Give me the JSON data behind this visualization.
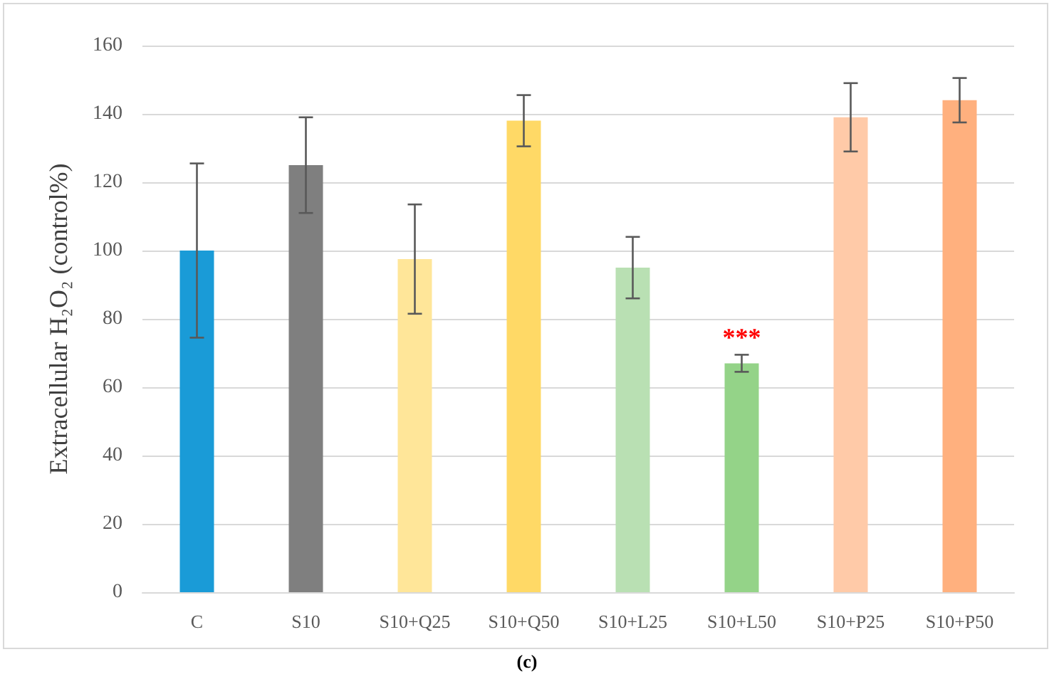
{
  "chart_data": {
    "type": "bar",
    "ylabel": "Extracellular H₂O₂ (control%)",
    "categories": [
      "C",
      "S10",
      "S10+Q25",
      "S10+Q50",
      "S10+L25",
      "S10+L50",
      "S10+P25",
      "S10+P50"
    ],
    "values": [
      100,
      125,
      97.5,
      138,
      95,
      67,
      139,
      144
    ],
    "errors": [
      25.5,
      14,
      16,
      7.5,
      9,
      2.5,
      10,
      6.5
    ],
    "colors": [
      "#1a9bd7",
      "#7f7f7f",
      "#ffe699",
      "#ffd966",
      "#b9e0b3",
      "#94d388",
      "#ffcaa8",
      "#ffb07e"
    ],
    "ylim": [
      0,
      160
    ],
    "yticks": [
      0,
      20,
      40,
      60,
      80,
      100,
      120,
      140,
      160
    ],
    "grid": "y",
    "annotations": [
      {
        "text": "***",
        "x": "S10+L50",
        "y": 67
      },
      "(c)"
    ]
  }
}
